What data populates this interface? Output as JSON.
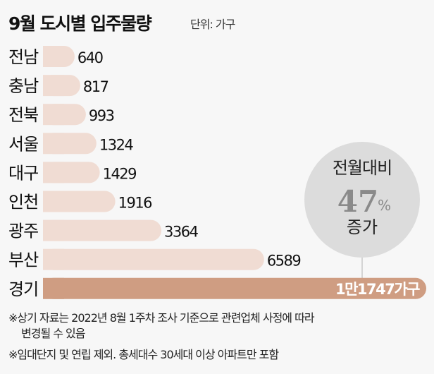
{
  "chart_data": {
    "type": "bar",
    "orientation": "horizontal",
    "title": "9월 도시별 입주물량",
    "unit_label": "단위: 가구",
    "categories": [
      "전남",
      "충남",
      "전북",
      "서울",
      "대구",
      "인천",
      "광주",
      "부산",
      "경기"
    ],
    "values": [
      640,
      817,
      993,
      1324,
      1429,
      1916,
      3364,
      6589,
      11747
    ],
    "value_labels": [
      "640",
      "817",
      "993",
      "1324",
      "1429",
      "1916",
      "3364",
      "6589",
      "1만1747가구"
    ],
    "highlight": "경기",
    "callout": {
      "top": "전월대비",
      "value": "47",
      "suffix": "%",
      "bottom": "증가"
    },
    "colors": {
      "bar": "#f0dcd3",
      "highlight_bar": "#cf9d82",
      "circle": "#dcdcdc",
      "callout_value": "#8a8a8a"
    }
  },
  "notes": {
    "note1_line1": "※상기 자료는 2022년 8월 1주차 조사 기준으로 관련업체 사정에 따라",
    "note1_line2": "변경될 수 있음",
    "note2": "※임대단지 및 연립 제외. 총세대수 30세대 이상 아파트만 포함"
  }
}
